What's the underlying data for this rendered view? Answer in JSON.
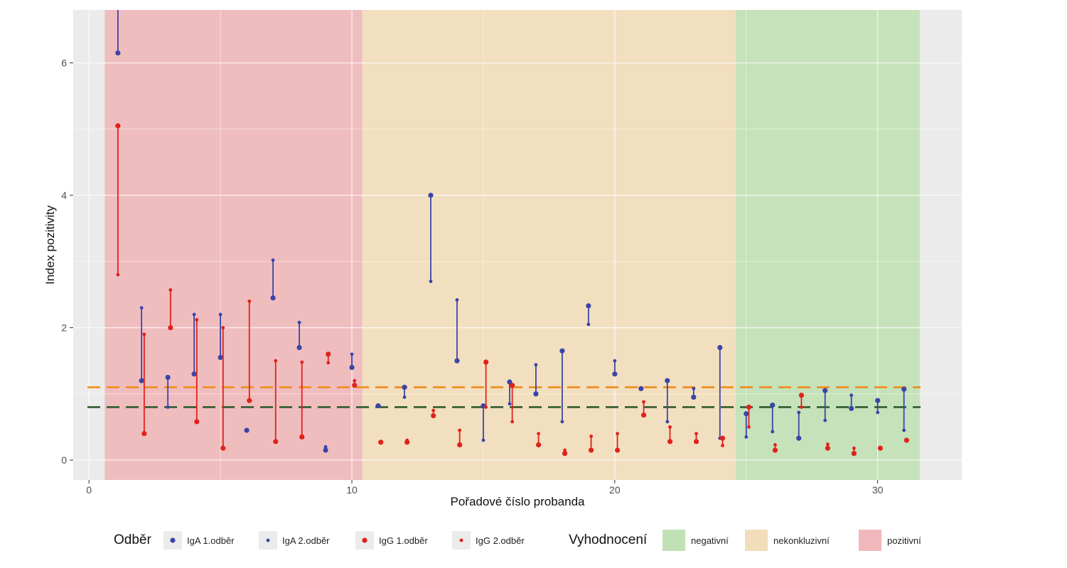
{
  "chart_data": {
    "type": "scatter",
    "title": "",
    "xlabel": "Pořadové číslo probanda",
    "ylabel": "Index pozitivity",
    "xlim": [
      -0.6,
      33.2
    ],
    "ylim": [
      -0.3,
      6.8
    ],
    "x_ticks": [
      0,
      10,
      20,
      30
    ],
    "y_ticks": [
      0,
      2,
      4,
      6
    ],
    "x_tick_labels": [
      "0",
      "10",
      "20",
      "30"
    ],
    "y_tick_labels": [
      "0",
      "2",
      "4",
      "6"
    ],
    "grid": true,
    "legend_position": "bottom",
    "regions": [
      {
        "label": "pozitivní",
        "x_start": 0.6,
        "x_end": 10.4,
        "color": "#f0b8bb"
      },
      {
        "label": "nekonkluzivní",
        "x_start": 10.4,
        "x_end": 24.6,
        "color": "#f2ddbb"
      },
      {
        "label": "negativní",
        "x_start": 24.6,
        "x_end": 31.6,
        "color": "#c1e1b5"
      }
    ],
    "thresholds": [
      {
        "y": 1.1,
        "color": "#f08c1a"
      },
      {
        "y": 0.8,
        "color": "#2e5a2e"
      }
    ],
    "series": [
      {
        "name": "IgA",
        "color": "#3a45a8",
        "points": [
          {
            "x": 1.1,
            "first": 6.15,
            "second": 6.9
          },
          {
            "x": 2.0,
            "first": 1.2,
            "second": 2.3
          },
          {
            "x": 3.0,
            "first": 1.25,
            "second": 0.8
          },
          {
            "x": 4.0,
            "first": 1.3,
            "second": 2.2
          },
          {
            "x": 5.0,
            "first": 1.55,
            "second": 2.2
          },
          {
            "x": 6.0,
            "first": 0.45,
            "second": 0.45
          },
          {
            "x": 7.0,
            "first": 2.45,
            "second": 3.02
          },
          {
            "x": 8.0,
            "first": 1.7,
            "second": 2.08
          },
          {
            "x": 9.0,
            "first": 0.15,
            "second": 0.2
          },
          {
            "x": 10.0,
            "first": 1.4,
            "second": 1.6
          },
          {
            "x": 11.0,
            "first": 0.82,
            "second": 0.82
          },
          {
            "x": 12.0,
            "first": 1.1,
            "second": 0.95
          },
          {
            "x": 13.0,
            "first": 4.0,
            "second": 2.7
          },
          {
            "x": 14.0,
            "first": 1.5,
            "second": 2.42
          },
          {
            "x": 15.0,
            "first": 0.82,
            "second": 0.3
          },
          {
            "x": 16.0,
            "first": 1.18,
            "second": 0.85
          },
          {
            "x": 17.0,
            "first": 1.0,
            "second": 1.44
          },
          {
            "x": 18.0,
            "first": 1.65,
            "second": 0.58
          },
          {
            "x": 19.0,
            "first": 2.33,
            "second": 2.05
          },
          {
            "x": 20.0,
            "first": 1.3,
            "second": 1.5
          },
          {
            "x": 21.0,
            "first": 1.08,
            "second": 1.08
          },
          {
            "x": 22.0,
            "first": 1.2,
            "second": 0.58
          },
          {
            "x": 23.0,
            "first": 0.95,
            "second": 1.08
          },
          {
            "x": 24.0,
            "first": 1.7,
            "second": 0.33
          },
          {
            "x": 25.0,
            "first": 0.7,
            "second": 0.35
          },
          {
            "x": 26.0,
            "first": 0.83,
            "second": 0.43
          },
          {
            "x": 27.0,
            "first": 0.33,
            "second": 0.72
          },
          {
            "x": 28.0,
            "first": 1.05,
            "second": 0.6
          },
          {
            "x": 29.0,
            "first": 0.78,
            "second": 0.98
          },
          {
            "x": 30.0,
            "first": 0.9,
            "second": 0.72
          },
          {
            "x": 31.0,
            "first": 1.07,
            "second": 0.45
          }
        ]
      },
      {
        "name": "IgG",
        "color": "#e0221a",
        "points": [
          {
            "x": 1.1,
            "first": 5.05,
            "second": 2.8
          },
          {
            "x": 2.1,
            "first": 0.4,
            "second": 1.9
          },
          {
            "x": 3.1,
            "first": 2.0,
            "second": 2.57
          },
          {
            "x": 4.1,
            "first": 0.58,
            "second": 2.12
          },
          {
            "x": 5.1,
            "first": 0.18,
            "second": 2.0
          },
          {
            "x": 6.1,
            "first": 0.9,
            "second": 2.4
          },
          {
            "x": 7.1,
            "first": 0.28,
            "second": 1.5
          },
          {
            "x": 8.1,
            "first": 0.35,
            "second": 1.48
          },
          {
            "x": 9.1,
            "first": 1.6,
            "second": 1.47
          },
          {
            "x": 10.1,
            "first": 1.13,
            "second": 1.2
          },
          {
            "x": 11.1,
            "first": 0.27,
            "second": 0.27
          },
          {
            "x": 12.1,
            "first": 0.27,
            "second": 0.3
          },
          {
            "x": 13.1,
            "first": 0.67,
            "second": 0.75
          },
          {
            "x": 14.1,
            "first": 0.23,
            "second": 0.45
          },
          {
            "x": 15.1,
            "first": 1.48,
            "second": 0.8
          },
          {
            "x": 16.1,
            "first": 1.13,
            "second": 0.58
          },
          {
            "x": 17.1,
            "first": 0.23,
            "second": 0.4
          },
          {
            "x": 18.1,
            "first": 0.1,
            "second": 0.15
          },
          {
            "x": 19.1,
            "first": 0.15,
            "second": 0.36
          },
          {
            "x": 20.1,
            "first": 0.15,
            "second": 0.4
          },
          {
            "x": 21.1,
            "first": 0.68,
            "second": 0.88
          },
          {
            "x": 22.1,
            "first": 0.28,
            "second": 0.5
          },
          {
            "x": 23.1,
            "first": 0.28,
            "second": 0.4
          },
          {
            "x": 24.1,
            "first": 0.33,
            "second": 0.22
          },
          {
            "x": 25.1,
            "first": 0.8,
            "second": 0.5
          },
          {
            "x": 26.1,
            "first": 0.15,
            "second": 0.23
          },
          {
            "x": 27.1,
            "first": 0.98,
            "second": 0.8
          },
          {
            "x": 28.1,
            "first": 0.18,
            "second": 0.24
          },
          {
            "x": 29.1,
            "first": 0.1,
            "second": 0.18
          },
          {
            "x": 30.1,
            "first": 0.18,
            "second": 0.18
          },
          {
            "x": 31.1,
            "first": 0.3,
            "second": 0.3
          }
        ]
      }
    ]
  },
  "legend": {
    "odber_title": "Odběr",
    "odber_items": [
      {
        "label": "IgA 1.odběr",
        "color": "#3a45a8",
        "marker": "large"
      },
      {
        "label": "IgA 2.odběr",
        "color": "#3a45a8",
        "marker": "small"
      },
      {
        "label": "IgG 1.odběr",
        "color": "#e0221a",
        "marker": "large"
      },
      {
        "label": "IgG 2.odběr",
        "color": "#e0221a",
        "marker": "small"
      }
    ],
    "vyhodnoceni_title": "Vyhodnocení",
    "vyhodnoceni_items": [
      {
        "label": "negativní",
        "color": "#c1e1b5"
      },
      {
        "label": "nekonkluzivní",
        "color": "#f2ddbb"
      },
      {
        "label": "pozitivní",
        "color": "#f0b8bb"
      }
    ]
  }
}
